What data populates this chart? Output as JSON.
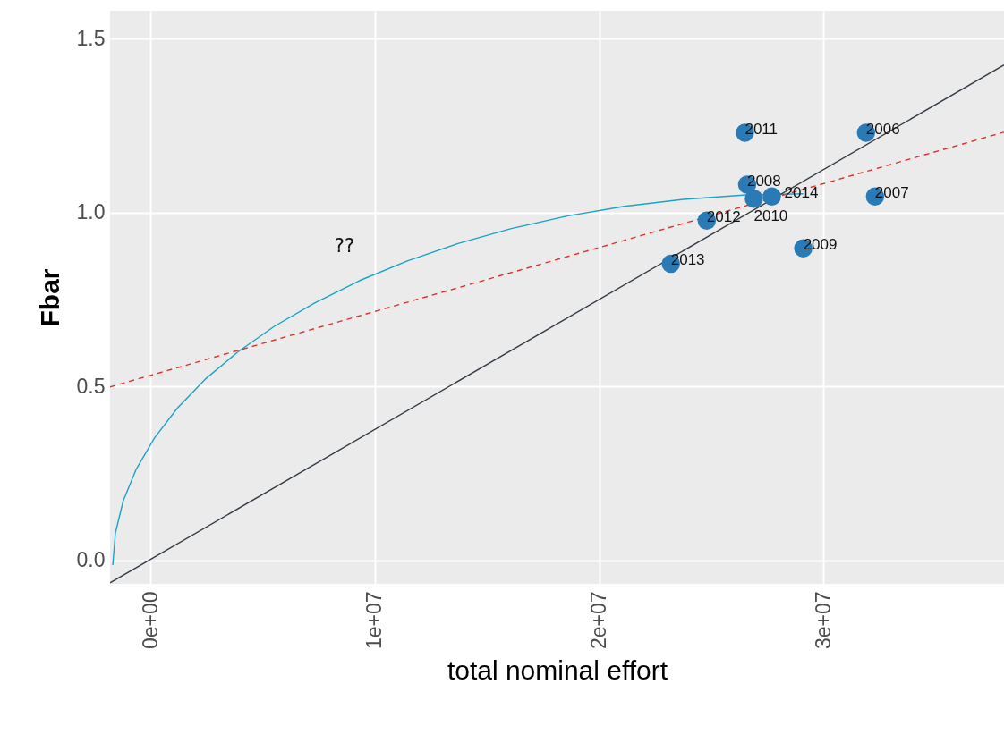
{
  "chart_data": {
    "type": "scatter",
    "xlabel": "total nominal effort",
    "ylabel": "Fbar",
    "xlim": [
      -1800000,
      38050000
    ],
    "ylim": [
      -0.067,
      1.58
    ],
    "xticks": [
      {
        "value": 0,
        "label": "0e+00"
      },
      {
        "value": 10000000,
        "label": "1e+07"
      },
      {
        "value": 20000000,
        "label": "2e+07"
      },
      {
        "value": 30000000,
        "label": "3e+07"
      }
    ],
    "yticks": [
      {
        "value": 0,
        "label": "0.0"
      },
      {
        "value": 0.5,
        "label": "0.5"
      },
      {
        "value": 1,
        "label": "1.0"
      },
      {
        "value": 1.5,
        "label": "1.5"
      }
    ],
    "grid": true,
    "annotations": [
      "??",
      {
        "text": "2011",
        "x": 26500000,
        "y": 1.229
      },
      {
        "text": "2006",
        "x": 31900000,
        "y": 1.229
      },
      {
        "text": "2008",
        "x": 26600000,
        "y": 1.08
      },
      {
        "text": "2010",
        "x": 26900000,
        "y": 1.04
      },
      {
        "text": "2014",
        "x": 27700000,
        "y": 1.046
      },
      {
        "text": "2007",
        "x": 32300000,
        "y": 1.046
      },
      {
        "text": "2012",
        "x": 24800000,
        "y": 0.977
      },
      {
        "text": "2009",
        "x": 29100000,
        "y": 0.897
      },
      {
        "text": "2013",
        "x": 23200000,
        "y": 0.853
      }
    ],
    "series": [
      {
        "type": "line",
        "color": "#1ba3c6",
        "marker": "none",
        "line_style": "solid",
        "x": [
          -1680000,
          -1560000,
          -1210000,
          -630000,
          180000,
          1200000,
          2440000,
          3890000,
          5520000,
          7340000,
          9310000,
          11450000,
          13710000,
          16090000,
          18570000,
          21130000,
          23760000,
          26420000,
          29100000
        ],
        "values": [
          -0.013,
          0.08,
          0.172,
          0.263,
          0.352,
          0.438,
          0.521,
          0.599,
          0.673,
          0.741,
          0.804,
          0.861,
          0.911,
          0.954,
          0.99,
          1.018,
          1.038,
          1.05,
          1.054
        ]
      },
      {
        "type": "line",
        "color": "#333b45",
        "marker": "none",
        "line_style": "solid",
        "x": [
          -1800000,
          38050000
        ],
        "values": [
          -0.064,
          1.424
        ]
      },
      {
        "type": "line",
        "color": "#e0302a",
        "marker": "none",
        "line_style": "dashed",
        "x": [
          -1800000,
          38050000
        ],
        "values": [
          0.499,
          1.231
        ]
      },
      {
        "type": "scatter",
        "color": "#2a7ab5",
        "marker": "circle",
        "x": [
          26500000,
          31900000,
          26600000,
          26900000,
          27700000,
          32300000,
          24800000,
          29100000,
          23200000
        ],
        "values": [
          1.229,
          1.229,
          1.08,
          1.04,
          1.046,
          1.046,
          0.977,
          0.897,
          0.853
        ]
      }
    ]
  }
}
